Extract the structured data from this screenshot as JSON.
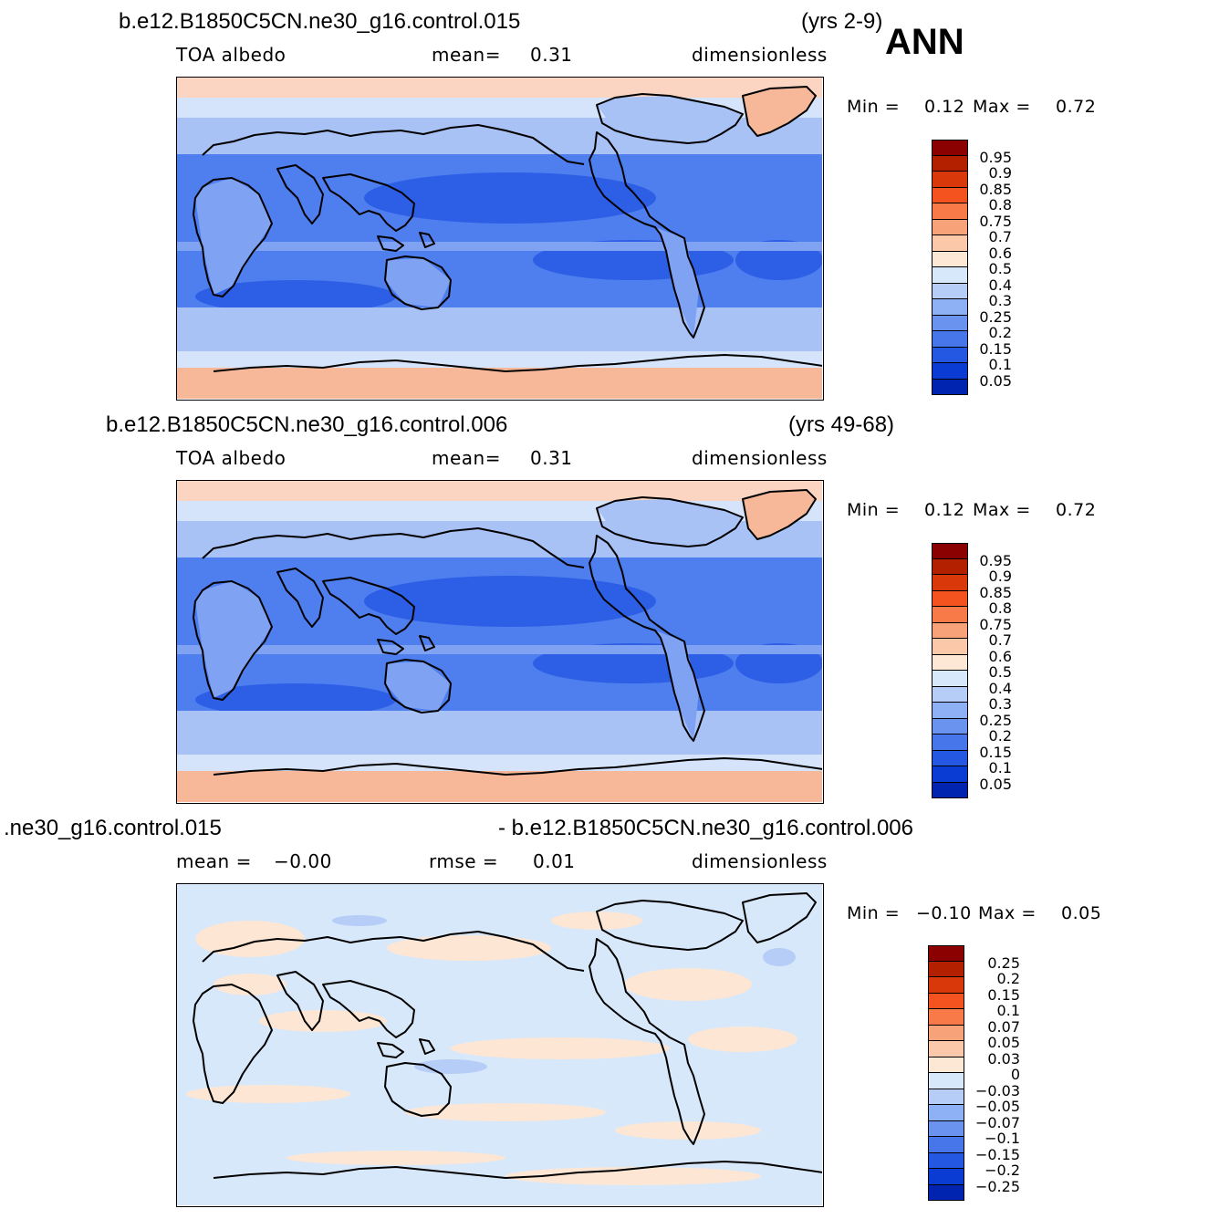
{
  "season": "ANN",
  "panels": [
    {
      "case_title": "b.e12.B1850C5CN.ne30_g16.control.015",
      "years": "(yrs 2-9)",
      "left_label": "TOA  albedo",
      "mid_label": "mean=",
      "mid_value": "0.31",
      "units": "dimensionless",
      "min_label": "Min  =",
      "min_value": "0.12",
      "max_label": "Max  =",
      "max_value": "0.72",
      "colorbar_labels": [
        "0.95",
        "0.9",
        "0.85",
        "0.8",
        "0.75",
        "0.7",
        "0.6",
        "0.5",
        "0.4",
        "0.3",
        "0.25",
        "0.2",
        "0.15",
        "0.1",
        "0.05"
      ]
    },
    {
      "case_title": "b.e12.B1850C5CN.ne30_g16.control.006",
      "years": "(yrs 49-68)",
      "left_label": "TOA  albedo",
      "mid_label": "mean=",
      "mid_value": "0.31",
      "units": "dimensionless",
      "min_label": "Min  =",
      "min_value": "0.12",
      "max_label": "Max  =",
      "max_value": "0.72",
      "colorbar_labels": [
        "0.95",
        "0.9",
        "0.85",
        "0.8",
        "0.75",
        "0.7",
        "0.6",
        "0.5",
        "0.4",
        "0.3",
        "0.25",
        "0.2",
        "0.15",
        "0.1",
        "0.05"
      ]
    },
    {
      "case_title": ".ne30_g16.control.015",
      "case_title_2": "- b.e12.B1850C5CN.ne30_g16.control.006",
      "left_label": "mean  =",
      "left_value": "−0.00",
      "mid_label": "rmse  =",
      "mid_value": "0.01",
      "units": "dimensionless",
      "min_label": "Min  =",
      "min_value": "−0.10",
      "max_label": "Max  =",
      "max_value": "0.05",
      "colorbar_labels": [
        "0.25",
        "0.2",
        "0.15",
        "0.1",
        "0.07",
        "0.05",
        "0.03",
        "0",
        "−0.03",
        "−0.05",
        "−0.07",
        "−0.1",
        "−0.15",
        "−0.2",
        "−0.25"
      ]
    }
  ],
  "colorbar_colors": [
    "#8b0000",
    "#b32000",
    "#d8380a",
    "#f4521e",
    "#f77a48",
    "#f8a27a",
    "#fbc8aa",
    "#fde8d6",
    "#d8e8fb",
    "#b5cdf7",
    "#8eb0f4",
    "#6a93f0",
    "#4775ea",
    "#2558e2",
    "#0a3cd4",
    "#0024b0",
    "#00108e"
  ],
  "map_colors": {
    "ocean_low": "#2c5fe6",
    "ocean_mid": "#4f7eee",
    "ocean_light": "#7fa2f3",
    "mid_lat": "#a8c2f6",
    "high_lat": "#d6e4fb",
    "polar": "#f7b89a",
    "polar_light": "#fbd5c1",
    "diff_base": "#d8e8fb",
    "diff_pos": "#fde6d4",
    "diff_neg": "#b5cdf7"
  }
}
